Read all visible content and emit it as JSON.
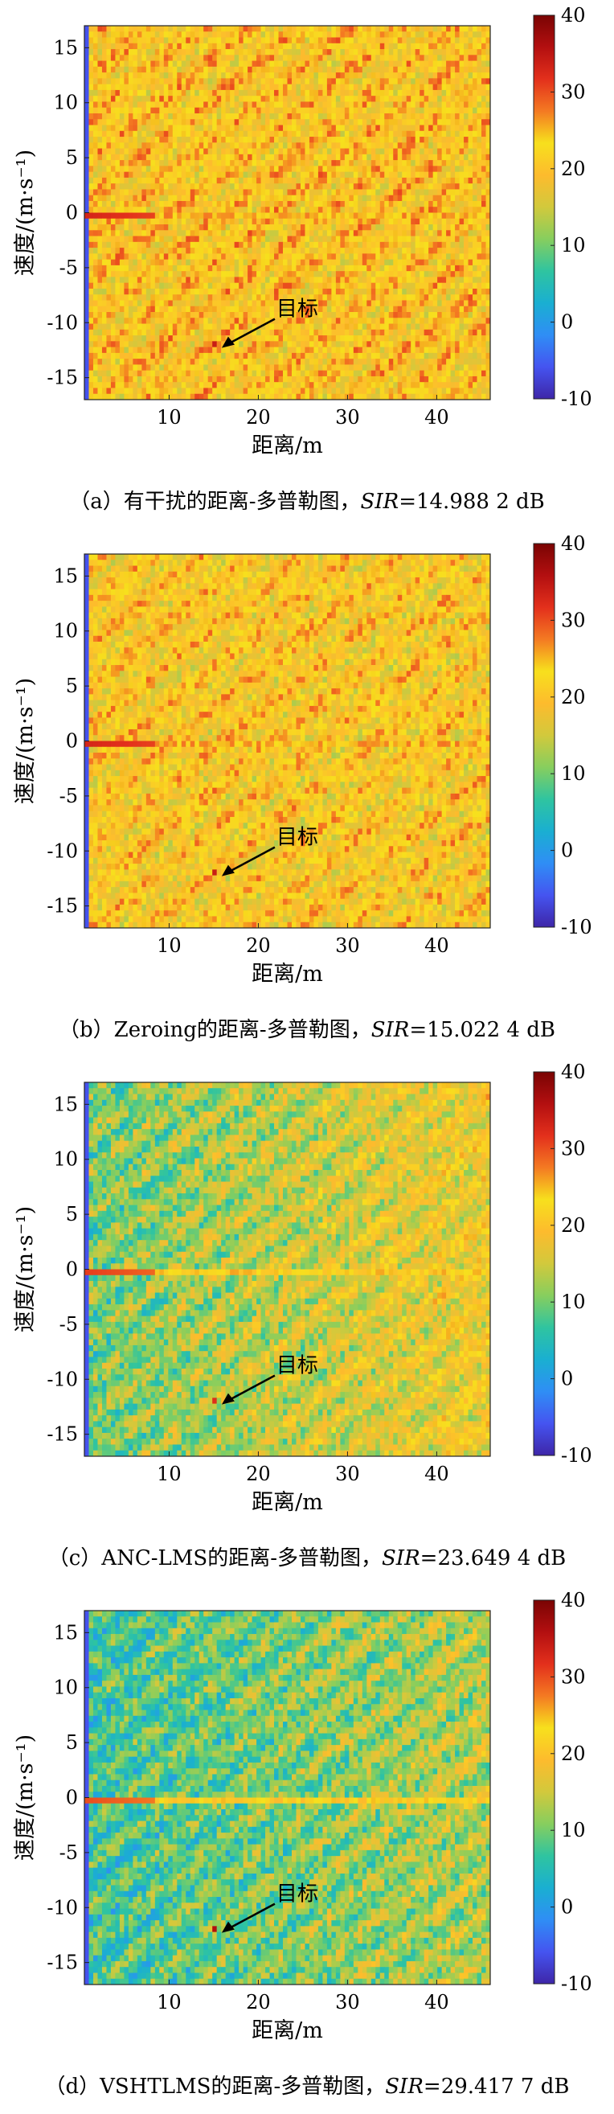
{
  "colorbar": {
    "stops": [
      "#3e26a8",
      "#4554f0",
      "#2f8ef5",
      "#1aafd1",
      "#2fc4a0",
      "#87ce5e",
      "#d2c93c",
      "#fdbb2d",
      "#f7e01d",
      "#f47a22",
      "#e3301c",
      "#b30f10",
      "#7a0403"
    ],
    "ticks": [
      "40",
      "30",
      "20",
      "10",
      "0",
      "-10"
    ],
    "range": [
      -10,
      40
    ]
  },
  "panels": [
    {
      "id": "a",
      "chart_data": {
        "type": "heatmap",
        "xlabel": "距离/m",
        "ylabel": "速度/(m·s⁻¹)",
        "xticks": [
          "10",
          "20",
          "30",
          "40"
        ],
        "yticks": [
          "15",
          "10",
          "5",
          "0",
          "-5",
          "-10",
          "-15"
        ],
        "xlim": [
          0.5,
          46
        ],
        "ylim": [
          -17,
          17
        ],
        "annotation": "目标",
        "target": {
          "range_m": 15,
          "velocity": -12,
          "level_db": 34
        },
        "zero_doppler_level_db": 33,
        "background_mean_db": 22,
        "range_trend": 0,
        "clutter_amplitude": 5
      },
      "caption_prefix": "（a）有干扰的距离-多普勒图，",
      "caption_sir_label": "SIR",
      "caption_sir_value": "=14.988 2 dB"
    },
    {
      "id": "b",
      "chart_data": {
        "type": "heatmap",
        "xlabel": "距离/m",
        "ylabel": "速度/(m·s⁻¹)",
        "xticks": [
          "10",
          "20",
          "30",
          "40"
        ],
        "yticks": [
          "15",
          "10",
          "5",
          "0",
          "-5",
          "-10",
          "-15"
        ],
        "xlim": [
          0.5,
          46
        ],
        "ylim": [
          -17,
          17
        ],
        "annotation": "目标",
        "target": {
          "range_m": 15,
          "velocity": -12,
          "level_db": 34
        },
        "zero_doppler_level_db": 33,
        "background_mean_db": 21,
        "range_trend": 0,
        "clutter_amplitude": 5
      },
      "caption_prefix": "（b）Zeroing的距离-多普勒图，",
      "caption_sir_label": "SIR",
      "caption_sir_value": "=15.022 4 dB"
    },
    {
      "id": "c",
      "chart_data": {
        "type": "heatmap",
        "xlabel": "距离/m",
        "ylabel": "速度/(m·s⁻¹)",
        "xticks": [
          "10",
          "20",
          "30",
          "40"
        ],
        "yticks": [
          "15",
          "10",
          "5",
          "0",
          "-5",
          "-10",
          "-15"
        ],
        "xlim": [
          0.5,
          46
        ],
        "ylim": [
          -17,
          17
        ],
        "annotation": "目标",
        "target": {
          "range_m": 15,
          "velocity": -12,
          "level_db": 32
        },
        "zero_doppler_level_db": 31,
        "background_mean_db": 10,
        "range_trend": 9,
        "clutter_amplitude": 5
      },
      "caption_prefix": "（c）ANC-LMS的距离-多普勒图，",
      "caption_sir_label": "SIR",
      "caption_sir_value": "=23.649 4 dB"
    },
    {
      "id": "d",
      "chart_data": {
        "type": "heatmap",
        "xlabel": "距离/m",
        "ylabel": "速度/(m·s⁻¹)",
        "xticks": [
          "10",
          "20",
          "30",
          "40"
        ],
        "yticks": [
          "15",
          "10",
          "5",
          "0",
          "-5",
          "-10",
          "-15"
        ],
        "xlim": [
          0.5,
          46
        ],
        "ylim": [
          -17,
          17
        ],
        "annotation": "目标",
        "target": {
          "range_m": 15,
          "velocity": -12,
          "level_db": 36
        },
        "zero_doppler_level_db": 30,
        "background_mean_db": 7,
        "range_trend": 7,
        "clutter_amplitude": 5
      },
      "caption_prefix": "（d）VSHTLMS的距离-多普勒图，",
      "caption_sir_label": "SIR",
      "caption_sir_value": "=29.417 7 dB"
    }
  ]
}
